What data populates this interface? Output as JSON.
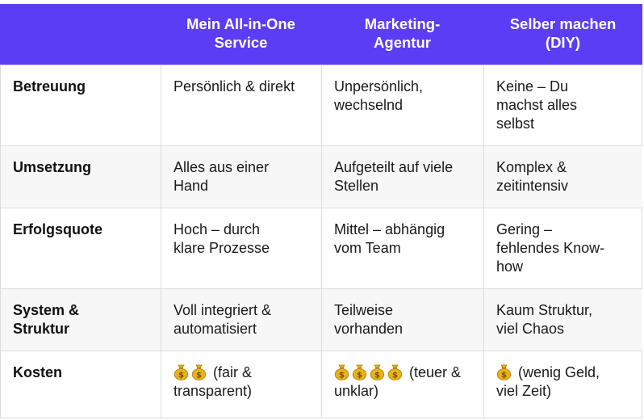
{
  "headers": [
    "",
    "Mein All-in-One Service",
    "Marketing-Agentur",
    "Selber machen (DIY)"
  ],
  "header_lines": [
    [],
    [
      "Mein All-in-One",
      "Service"
    ],
    [
      "Marketing-",
      "Agentur"
    ],
    [
      "Selber machen",
      "(DIY)"
    ]
  ],
  "rows": [
    {
      "label": [
        "Betreuung"
      ],
      "cells": [
        [
          "Persönlich & direkt"
        ],
        [
          "Unpersönlich,",
          "wechselnd"
        ],
        [
          "Keine – Du",
          "machst alles",
          "selbst"
        ]
      ]
    },
    {
      "label": [
        "Umsetzung"
      ],
      "cells": [
        [
          "Alles aus einer",
          "Hand"
        ],
        [
          "Aufgeteilt auf viele",
          "Stellen"
        ],
        [
          "Komplex &",
          "zeitintensiv"
        ]
      ]
    },
    {
      "label": [
        "Erfolgsquote"
      ],
      "cells": [
        [
          "Hoch – durch",
          "klare Prozesse"
        ],
        [
          "Mittel – abhängig",
          "vom Team"
        ],
        [
          "Gering –",
          "fehlendes Know-",
          "how"
        ]
      ]
    },
    {
      "label": [
        "System &",
        "Struktur"
      ],
      "cells": [
        [
          "Voll integriert &",
          "automatisiert"
        ],
        [
          "Teilweise",
          "vorhanden"
        ],
        [
          "Kaum Struktur,",
          "viel Chaos"
        ]
      ]
    },
    {
      "label": [
        "Kosten"
      ],
      "costs": [
        {
          "coins": 2,
          "line1": " (fair &",
          "line2": "transparent)"
        },
        {
          "coins": 4,
          "line1": " (teuer &",
          "line2": "unklar)"
        },
        {
          "coins": 1,
          "line1": " (wenig Geld,",
          "line2": "viel Zeit)"
        }
      ]
    }
  ],
  "icons": {
    "coin": "money-bag-icon"
  },
  "colors": {
    "header_bg": "#5a3df5",
    "header_text": "#ffffff",
    "coin_gold": "#e8b21a"
  }
}
